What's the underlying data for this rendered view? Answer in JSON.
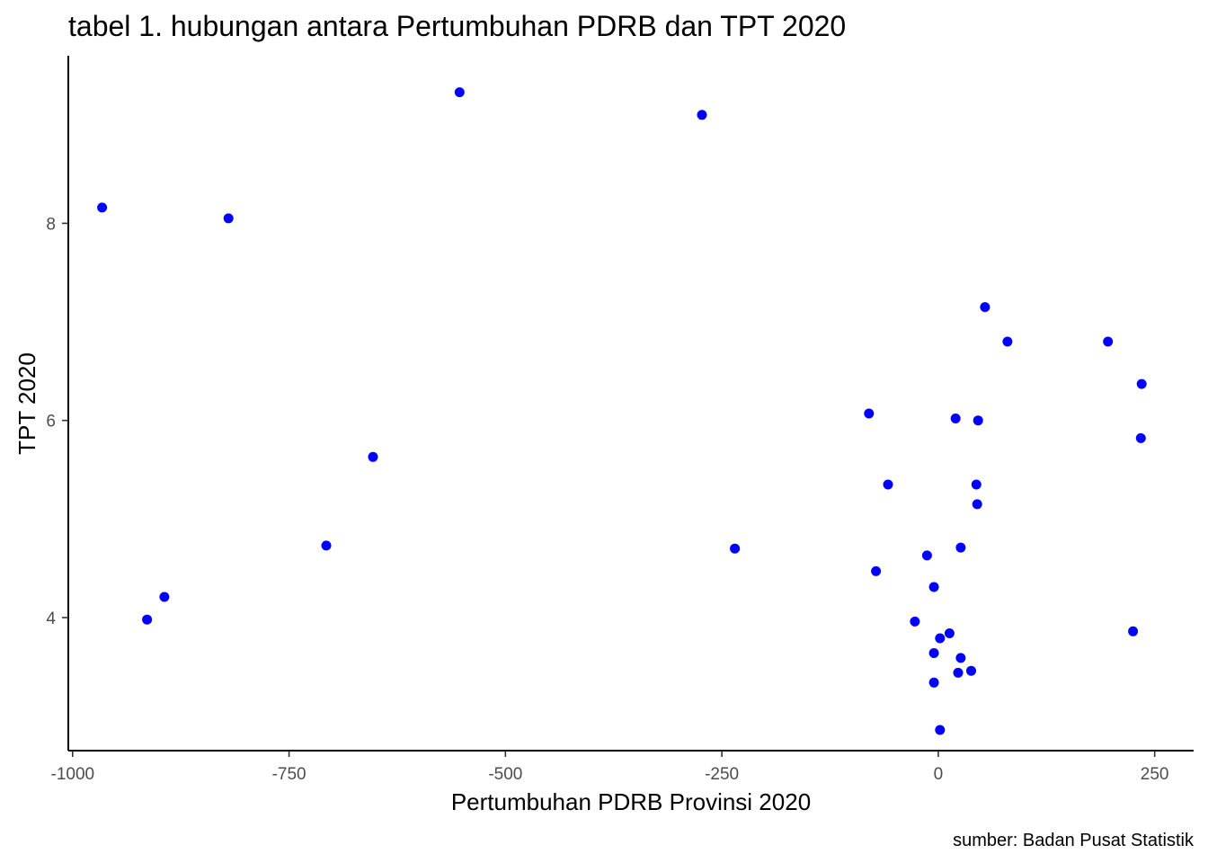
{
  "chart_data": {
    "type": "scatter",
    "title": "tabel 1. hubungan antara Pertumbuhan PDRB dan TPT 2020",
    "xlabel": "Pertumbuhan PDRB Provinsi 2020",
    "ylabel": "TPT 2020",
    "caption": "sumber: Badan Pusat Statistik",
    "xlim": [
      -1005,
      295
    ],
    "ylim": [
      2.65,
      9.7
    ],
    "x_ticks": [
      -1000,
      -750,
      -500,
      -250,
      0,
      250
    ],
    "x_tick_labels": [
      "-1000",
      "-750",
      "-500",
      "-250",
      "0",
      "250"
    ],
    "y_ticks": [
      4,
      6,
      8
    ],
    "y_tick_labels": [
      "4",
      "6",
      "8"
    ],
    "grid": false,
    "point_color": "#0000ff",
    "points": [
      {
        "x": -966,
        "y": 8.16
      },
      {
        "x": -914,
        "y": 3.98
      },
      {
        "x": -894,
        "y": 4.21
      },
      {
        "x": -820,
        "y": 8.05
      },
      {
        "x": -707,
        "y": 4.73
      },
      {
        "x": -653,
        "y": 5.63
      },
      {
        "x": -553,
        "y": 9.33
      },
      {
        "x": -273,
        "y": 9.1
      },
      {
        "x": -235,
        "y": 4.7
      },
      {
        "x": -80,
        "y": 6.07
      },
      {
        "x": -72,
        "y": 4.47
      },
      {
        "x": -58,
        "y": 5.35
      },
      {
        "x": -27,
        "y": 3.96
      },
      {
        "x": -13,
        "y": 4.63
      },
      {
        "x": -5,
        "y": 4.31
      },
      {
        "x": -5,
        "y": 3.64
      },
      {
        "x": -5,
        "y": 3.34
      },
      {
        "x": 2,
        "y": 3.79
      },
      {
        "x": 2,
        "y": 2.86
      },
      {
        "x": 13,
        "y": 3.84
      },
      {
        "x": 20,
        "y": 6.02
      },
      {
        "x": 23,
        "y": 3.44
      },
      {
        "x": 26,
        "y": 3.59
      },
      {
        "x": 26,
        "y": 4.71
      },
      {
        "x": 38,
        "y": 3.46
      },
      {
        "x": 44,
        "y": 5.35
      },
      {
        "x": 45,
        "y": 5.15
      },
      {
        "x": 46,
        "y": 6.0
      },
      {
        "x": 54,
        "y": 7.15
      },
      {
        "x": 80,
        "y": 6.8
      },
      {
        "x": 196,
        "y": 6.8
      },
      {
        "x": 225,
        "y": 3.86
      },
      {
        "x": 234,
        "y": 5.82
      },
      {
        "x": 235,
        "y": 6.37
      }
    ]
  }
}
